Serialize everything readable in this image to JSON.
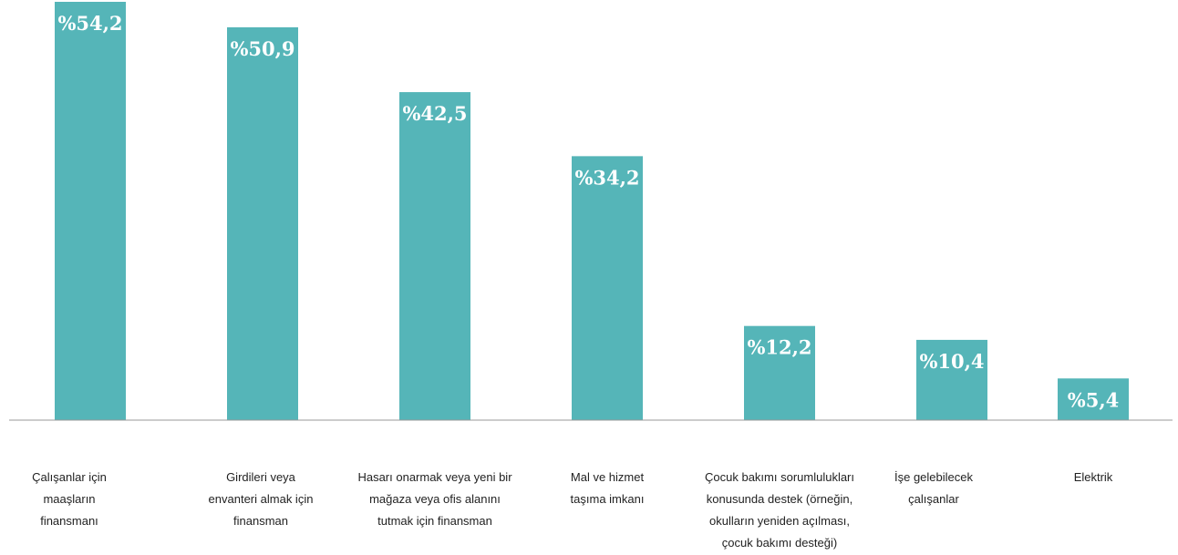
{
  "chart_data": {
    "type": "bar",
    "categories": [
      [
        "Çalışanlar için",
        "maaşların",
        "finansmanı"
      ],
      [
        "Girdileri veya",
        "envanteri almak için",
        "finansman"
      ],
      [
        "Hasarı onarmak veya yeni bir",
        "mağaza veya ofis alanını",
        "tutmak için finansman"
      ],
      [
        "Mal ve hizmet",
        "taşıma imkanı"
      ],
      [
        "Çocuk bakımı sorumlulukları",
        "konusunda destek (örneğin,",
        "okulların yeniden açılması,",
        "çocuk bakımı desteği)"
      ],
      [
        "İşe gelebilecek",
        "çalışanlar"
      ],
      [
        "Elektrik"
      ]
    ],
    "values": [
      54.2,
      50.9,
      42.5,
      34.2,
      12.2,
      10.4,
      5.4
    ],
    "data_labels": [
      "%54,2",
      "%50,9",
      "%42,5",
      "%34,2",
      "%12,2",
      "%10,4",
      "%5,4"
    ],
    "title": "",
    "xlabel": "",
    "ylabel": "",
    "ylim": [
      0,
      54.2
    ],
    "grid": false,
    "legend": "none",
    "bar_color": "#55b5b8",
    "axis_color": "#999999"
  }
}
